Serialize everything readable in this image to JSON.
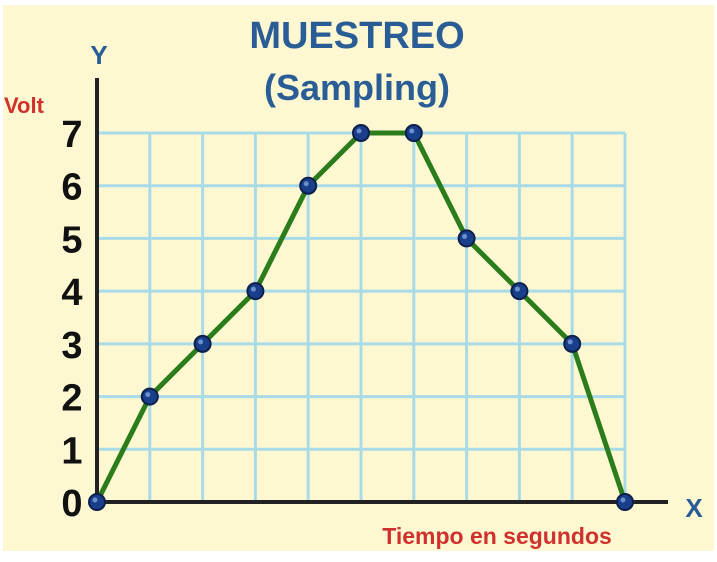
{
  "chart_data": {
    "type": "line",
    "title": "MUESTREO",
    "subtitle": "(Sampling)",
    "y_axis_letter": "Y",
    "x_axis_letter": "X",
    "ylabel": "Volt",
    "xlabel": "Tiempo en segundos",
    "x": [
      0,
      1,
      2,
      3,
      4,
      5,
      6,
      7,
      8,
      9,
      10
    ],
    "values": [
      0,
      2,
      3,
      4,
      6,
      7,
      7,
      5,
      4,
      3,
      0
    ],
    "y_ticks": [
      "0",
      "1",
      "2",
      "3",
      "4",
      "5",
      "6",
      "7"
    ],
    "ylim": [
      0,
      7
    ],
    "xlim": [
      0,
      10
    ],
    "grid": true,
    "colors": {
      "background": "#fdf8d2",
      "grid": "#a9dbe6",
      "line": "#2a7d1a",
      "marker": "#1a3f8a",
      "axis": "#222222",
      "title": "#2a5d96",
      "axis_label": "#d0312d",
      "tick_label": "#111111"
    }
  }
}
